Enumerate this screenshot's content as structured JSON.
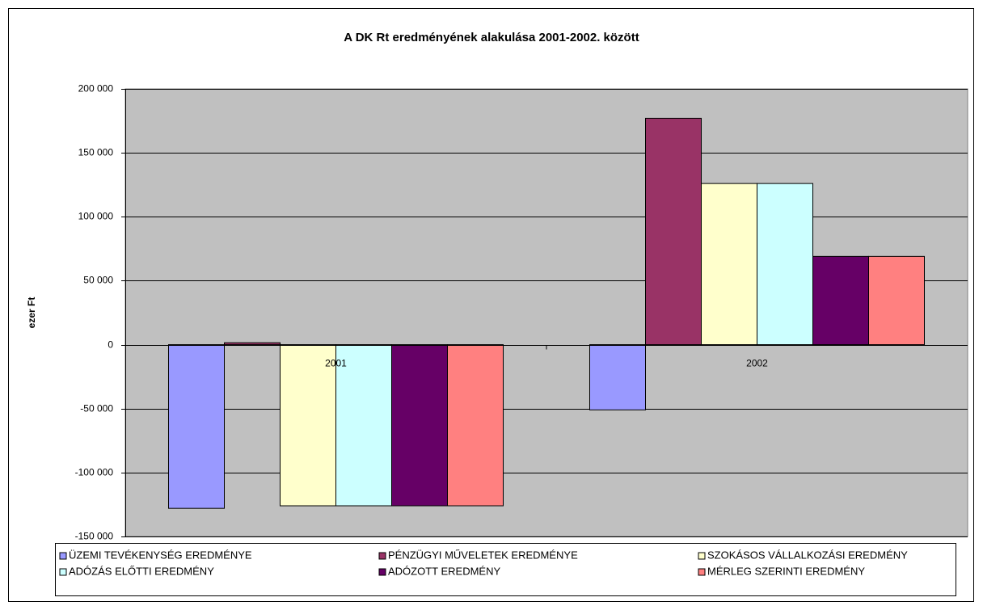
{
  "chart_data": {
    "type": "bar",
    "title": "A DK Rt eredményének alakulása 2001-2002. között",
    "y_label": "ezer Ft",
    "categories": [
      "2001",
      "2002"
    ],
    "series": [
      {
        "name": "ÜZEMI TEVÉKENYSÉG EREDMÉNYE",
        "color": "#9999ff",
        "values": [
          -128000,
          -51000
        ]
      },
      {
        "name": "PÉNZÜGYI MŰVELETEK EREDMÉNYE",
        "color": "#993366",
        "values": [
          1500,
          177000
        ]
      },
      {
        "name": "SZOKÁSOS VÁLLALKOZÁSI EREDMÉNY",
        "color": "#ffffcc",
        "values": [
          -126000,
          126000
        ]
      },
      {
        "name": "ADÓZÁS ELŐTTI EREDMÉNY",
        "color": "#ccffff",
        "values": [
          -126000,
          126000
        ]
      },
      {
        "name": "ADÓZOTT EREDMÉNY",
        "color": "#660066",
        "values": [
          -126000,
          69000
        ]
      },
      {
        "name": "MÉRLEG SZERINTI EREDMÉNY",
        "color": "#ff8080",
        "values": [
          -126000,
          69000
        ]
      }
    ],
    "ylim": [
      -150000,
      200000
    ],
    "yticks": [
      {
        "value": -150000,
        "label": "-150 000"
      },
      {
        "value": -100000,
        "label": "-100 000"
      },
      {
        "value": -50000,
        "label": "-50 000"
      },
      0,
      {
        "value": 50000,
        "label": "50 000"
      },
      {
        "value": 100000,
        "label": "100 000"
      },
      {
        "value": 150000,
        "label": "150 000"
      },
      {
        "value": 200000,
        "label": "200 000"
      }
    ],
    "grid": true,
    "legend": "bottom"
  }
}
